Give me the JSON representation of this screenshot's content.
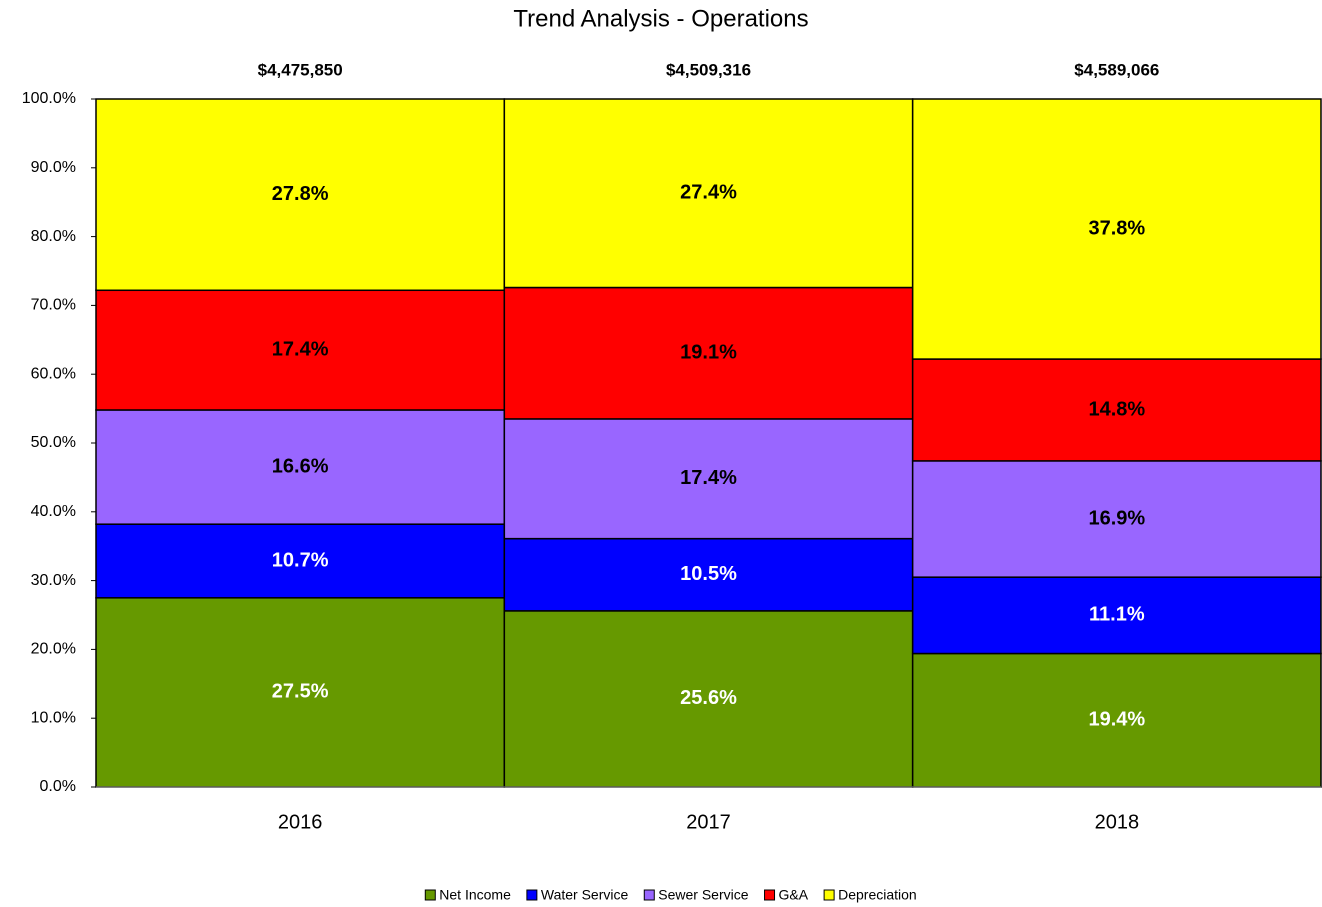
{
  "chart_data": {
    "type": "stacked_bar_100",
    "title": "Trend Analysis - Operations",
    "categories": [
      "2016",
      "2017",
      "2018"
    ],
    "totals": [
      4475850,
      4509316,
      4589066
    ],
    "total_labels": [
      "$4,475,850",
      "$4,509,316",
      "$4,589,066"
    ],
    "series": [
      {
        "name": "Net Income",
        "color": "#669900",
        "label_color": "#ffffff",
        "values": [
          27.5,
          25.6,
          19.4
        ],
        "value_labels": [
          "27.5%",
          "25.6%",
          "19.4%"
        ]
      },
      {
        "name": "Water Service",
        "color": "#0000ff",
        "label_color": "#ffffff",
        "values": [
          10.7,
          10.5,
          11.1
        ],
        "value_labels": [
          "10.7%",
          "10.5%",
          "11.1%"
        ]
      },
      {
        "name": "Sewer Service",
        "color": "#9966ff",
        "label_color": "#000000",
        "values": [
          16.6,
          17.4,
          16.9
        ],
        "value_labels": [
          "16.6%",
          "17.4%",
          "16.9%"
        ]
      },
      {
        "name": "G&A",
        "color": "#ff0000",
        "label_color": "#000000",
        "values": [
          17.4,
          19.1,
          14.8
        ],
        "value_labels": [
          "17.4%",
          "19.1%",
          "14.8%"
        ]
      },
      {
        "name": "Depreciation",
        "color": "#ffff00",
        "label_color": "#000000",
        "values": [
          27.8,
          27.4,
          37.8
        ],
        "value_labels": [
          "27.8%",
          "27.4%",
          "37.8%"
        ]
      }
    ],
    "ylim": [
      0,
      100
    ],
    "yticks": [
      {
        "value": 0,
        "label": "0.0%"
      },
      {
        "value": 10,
        "label": "10.0%"
      },
      {
        "value": 20,
        "label": "20.0%"
      },
      {
        "value": 30,
        "label": "30.0%"
      },
      {
        "value": 40,
        "label": "40.0%"
      },
      {
        "value": 50,
        "label": "50.0%"
      },
      {
        "value": 60,
        "label": "60.0%"
      },
      {
        "value": 70,
        "label": "70.0%"
      },
      {
        "value": 80,
        "label": "80.0%"
      },
      {
        "value": 90,
        "label": "90.0%"
      },
      {
        "value": 100,
        "label": "100.0%"
      }
    ],
    "legend": "bottom"
  }
}
